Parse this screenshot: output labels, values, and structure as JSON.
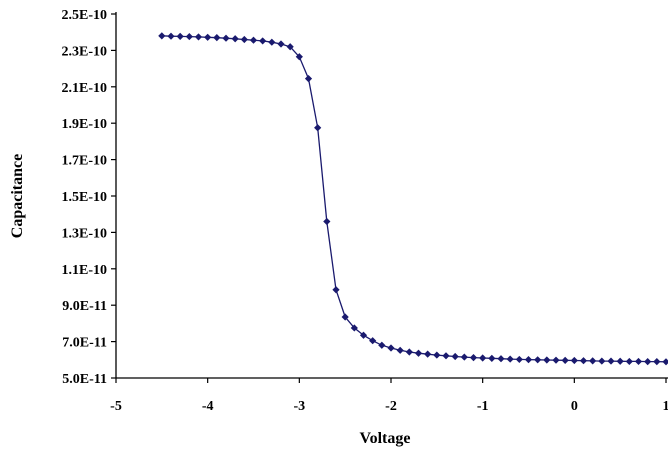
{
  "chart_data": {
    "type": "line",
    "xlabel": "Voltage",
    "ylabel": "Capacitance",
    "xlim": [
      -5,
      1
    ],
    "ylim": [
      5e-11,
      2.5e-10
    ],
    "x_ticks": [
      -5,
      -4,
      -3,
      -2,
      -1,
      0,
      1
    ],
    "x_tick_labels": [
      "-5",
      "-4",
      "-3",
      "-2",
      "-1",
      "0",
      "1"
    ],
    "y_ticks": [
      5e-11,
      7e-11,
      9e-11,
      1.1e-10,
      1.3e-10,
      1.5e-10,
      1.7e-10,
      1.9e-10,
      2.1e-10,
      2.3e-10,
      2.5e-10
    ],
    "y_tick_labels": [
      "5.0E-11",
      "7.0E-11",
      "9.0E-11",
      "1.1E-10",
      "1.3E-10",
      "1.5E-10",
      "1.7E-10",
      "1.9E-10",
      "2.1E-10",
      "2.3E-10",
      "2.5E-10"
    ],
    "grid": false,
    "legend": "none",
    "series": [
      {
        "color": "#1a1a6e",
        "marker": "diamond",
        "x": [
          -4.5,
          -4.4,
          -4.3,
          -4.2,
          -4.1,
          -4.0,
          -3.9,
          -3.8,
          -3.7,
          -3.6,
          -3.5,
          -3.4,
          -3.3,
          -3.2,
          -3.1,
          -3.0,
          -2.9,
          -2.8,
          -2.7,
          -2.6,
          -2.5,
          -2.4,
          -2.3,
          -2.2,
          -2.1,
          -2.0,
          -1.9,
          -1.8,
          -1.7,
          -1.6,
          -1.5,
          -1.4,
          -1.3,
          -1.2,
          -1.1,
          -1.0,
          -0.9,
          -0.8,
          -0.7,
          -0.6,
          -0.5,
          -0.4,
          -0.3,
          -0.2,
          -0.1,
          0.0,
          0.1,
          0.2,
          0.3,
          0.4,
          0.5,
          0.6,
          0.7,
          0.8,
          0.9,
          1.0
        ],
        "y": [
          2.38e-10,
          2.378e-10,
          2.377e-10,
          2.376e-10,
          2.374e-10,
          2.372e-10,
          2.37e-10,
          2.367e-10,
          2.364e-10,
          2.36e-10,
          2.356e-10,
          2.352e-10,
          2.345e-10,
          2.335e-10,
          2.32e-10,
          2.265e-10,
          2.145e-10,
          1.875e-10,
          1.36e-10,
          9.85e-11,
          8.35e-11,
          7.75e-11,
          7.35e-11,
          7.05e-11,
          6.8e-11,
          6.65e-11,
          6.52e-11,
          6.43e-11,
          6.36e-11,
          6.31e-11,
          6.26e-11,
          6.22e-11,
          6.18e-11,
          6.15e-11,
          6.12e-11,
          6.1e-11,
          6.08e-11,
          6.06e-11,
          6.04e-11,
          6.02e-11,
          6.01e-11,
          6e-11,
          5.99e-11,
          5.98e-11,
          5.97e-11,
          5.96e-11,
          5.95e-11,
          5.94e-11,
          5.93e-11,
          5.93e-11,
          5.92e-11,
          5.91e-11,
          5.91e-11,
          5.9e-11,
          5.9e-11,
          5.89e-11
        ]
      }
    ]
  }
}
